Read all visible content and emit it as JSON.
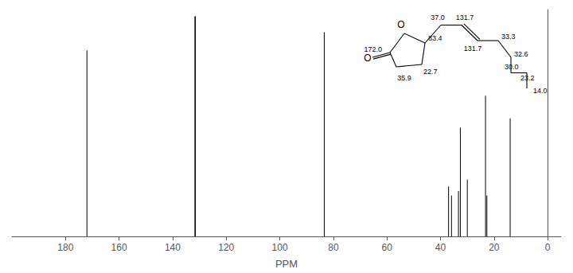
{
  "chart_data": {
    "type": "bar",
    "xlabel": "PPM",
    "x": [
      172.0,
      131.7,
      131.5,
      83.4,
      37.0,
      35.9,
      33.3,
      32.6,
      30.0,
      23.2,
      22.7,
      14.0
    ],
    "values": [
      0.861,
      1.0185,
      1.0185,
      0.945,
      0.231,
      0.189,
      0.21,
      0.504,
      0.2625,
      0.651,
      0.189,
      0.546
    ],
    "color": "#000000",
    "xlim": [
      200,
      -5
    ],
    "ylim": [
      0,
      1.05
    ],
    "xticks": [
      180,
      160,
      140,
      120,
      100,
      80,
      60,
      40,
      20,
      0
    ],
    "grid": false,
    "tick_labels": "x",
    "annotations": [
      "172.0",
      "O",
      "O",
      "83.4",
      "37.0",
      "131.7",
      "131.7",
      "33.3",
      "32.6",
      "22.7",
      "35.9",
      "30.0",
      "23.2",
      "14.0"
    ]
  }
}
